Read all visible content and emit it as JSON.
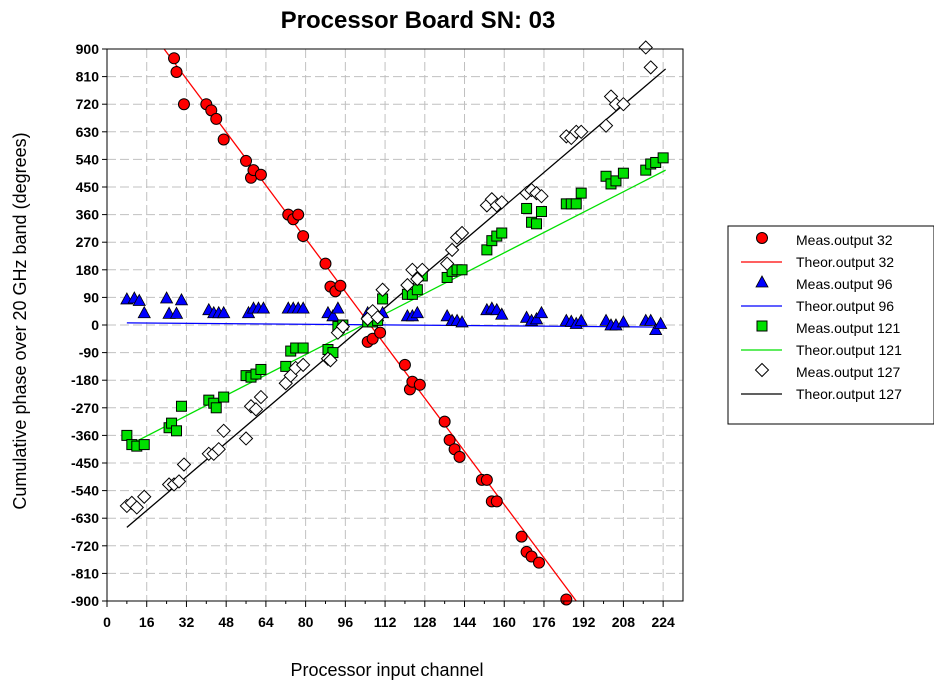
{
  "chart_data": {
    "type": "scatter",
    "title": "Processor Board SN: 03",
    "xlabel": "Processor input channel",
    "ylabel": "Cumulative phase over 20 GHz band (degrees)",
    "xlim": [
      0,
      232
    ],
    "ylim": [
      -900,
      900
    ],
    "xticks": [
      0,
      16,
      32,
      48,
      64,
      80,
      96,
      112,
      128,
      144,
      160,
      176,
      192,
      208,
      224
    ],
    "yticks": [
      900,
      810,
      720,
      630,
      540,
      450,
      360,
      270,
      180,
      90,
      0,
      -90,
      -180,
      -270,
      -360,
      -450,
      -540,
      -630,
      -720,
      -810,
      -900
    ],
    "grid": true,
    "legend_position": "right",
    "series": [
      {
        "name": "Meas.output 32",
        "kind": "scatter",
        "marker": "circle",
        "color": "#ff0000",
        "points": [
          [
            27,
            870
          ],
          [
            28,
            825
          ],
          [
            31,
            720
          ],
          [
            40,
            720
          ],
          [
            42,
            700
          ],
          [
            44,
            672
          ],
          [
            47,
            605
          ],
          [
            56,
            535
          ],
          [
            58,
            480
          ],
          [
            59,
            505
          ],
          [
            62,
            490
          ],
          [
            73,
            360
          ],
          [
            75,
            345
          ],
          [
            77,
            360
          ],
          [
            79,
            290
          ],
          [
            88,
            200
          ],
          [
            90,
            125
          ],
          [
            92,
            110
          ],
          [
            94,
            128
          ],
          [
            105,
            -55
          ],
          [
            107,
            -45
          ],
          [
            110,
            -25
          ],
          [
            120,
            -130
          ],
          [
            122,
            -210
          ],
          [
            123,
            -185
          ],
          [
            126,
            -195
          ],
          [
            136,
            -315
          ],
          [
            138,
            -375
          ],
          [
            140,
            -405
          ],
          [
            142,
            -430
          ],
          [
            151,
            -505
          ],
          [
            153,
            -505
          ],
          [
            155,
            -575
          ],
          [
            157,
            -575
          ],
          [
            167,
            -690
          ],
          [
            169,
            -740
          ],
          [
            171,
            -755
          ],
          [
            174,
            -775
          ],
          [
            185,
            -895
          ]
        ]
      },
      {
        "name": "Theor.output 32",
        "kind": "line",
        "color": "#ff0000",
        "points": [
          [
            23,
            900
          ],
          [
            189,
            -900
          ]
        ]
      },
      {
        "name": "Meas.output 96",
        "kind": "scatter",
        "marker": "triangle",
        "color": "#0000ff",
        "points": [
          [
            8,
            85
          ],
          [
            11,
            88
          ],
          [
            13,
            80
          ],
          [
            15,
            40
          ],
          [
            24,
            88
          ],
          [
            25,
            38
          ],
          [
            28,
            38
          ],
          [
            30,
            82
          ],
          [
            41,
            50
          ],
          [
            43,
            40
          ],
          [
            45,
            40
          ],
          [
            47,
            40
          ],
          [
            57,
            40
          ],
          [
            59,
            55
          ],
          [
            61,
            55
          ],
          [
            63,
            55
          ],
          [
            73,
            55
          ],
          [
            75,
            55
          ],
          [
            77,
            55
          ],
          [
            79,
            55
          ],
          [
            89,
            40
          ],
          [
            91,
            30
          ],
          [
            93,
            55
          ],
          [
            105,
            40
          ],
          [
            107,
            20
          ],
          [
            109,
            30
          ],
          [
            111,
            40
          ],
          [
            121,
            30
          ],
          [
            123,
            30
          ],
          [
            125,
            40
          ],
          [
            137,
            30
          ],
          [
            139,
            15
          ],
          [
            141,
            15
          ],
          [
            143,
            10
          ],
          [
            153,
            50
          ],
          [
            155,
            55
          ],
          [
            157,
            50
          ],
          [
            159,
            35
          ],
          [
            169,
            25
          ],
          [
            171,
            15
          ],
          [
            173,
            20
          ],
          [
            175,
            40
          ],
          [
            185,
            15
          ],
          [
            187,
            12
          ],
          [
            189,
            5
          ],
          [
            191,
            15
          ],
          [
            201,
            15
          ],
          [
            203,
            0
          ],
          [
            205,
            0
          ],
          [
            208,
            10
          ],
          [
            217,
            15
          ],
          [
            219,
            15
          ],
          [
            221,
            -15
          ],
          [
            223,
            5
          ]
        ]
      },
      {
        "name": "Theor.output 96",
        "kind": "line",
        "color": "#0000ff",
        "points": [
          [
            8,
            7
          ],
          [
            225,
            -7
          ]
        ]
      },
      {
        "name": "Meas.output 121",
        "kind": "scatter",
        "marker": "square",
        "color": "#00e000",
        "points": [
          [
            8,
            -360
          ],
          [
            10,
            -390
          ],
          [
            12,
            -395
          ],
          [
            15,
            -390
          ],
          [
            25,
            -335
          ],
          [
            26,
            -320
          ],
          [
            28,
            -345
          ],
          [
            30,
            -265
          ],
          [
            41,
            -245
          ],
          [
            43,
            -255
          ],
          [
            44,
            -270
          ],
          [
            47,
            -235
          ],
          [
            56,
            -165
          ],
          [
            58,
            -170
          ],
          [
            60,
            -160
          ],
          [
            62,
            -145
          ],
          [
            72,
            -135
          ],
          [
            74,
            -85
          ],
          [
            76,
            -75
          ],
          [
            79,
            -75
          ],
          [
            89,
            -80
          ],
          [
            91,
            -90
          ],
          [
            93,
            -5
          ],
          [
            95,
            0
          ],
          [
            105,
            10
          ],
          [
            107,
            10
          ],
          [
            109,
            15
          ],
          [
            111,
            85
          ],
          [
            121,
            100
          ],
          [
            123,
            100
          ],
          [
            125,
            115
          ],
          [
            127,
            160
          ],
          [
            137,
            155
          ],
          [
            139,
            175
          ],
          [
            141,
            180
          ],
          [
            143,
            180
          ],
          [
            153,
            245
          ],
          [
            155,
            275
          ],
          [
            157,
            290
          ],
          [
            159,
            300
          ],
          [
            169,
            380
          ],
          [
            171,
            335
          ],
          [
            173,
            330
          ],
          [
            175,
            370
          ],
          [
            185,
            395
          ],
          [
            187,
            395
          ],
          [
            189,
            395
          ],
          [
            191,
            430
          ],
          [
            201,
            485
          ],
          [
            203,
            460
          ],
          [
            205,
            470
          ],
          [
            208,
            495
          ],
          [
            217,
            505
          ],
          [
            219,
            525
          ],
          [
            221,
            530
          ],
          [
            224,
            545
          ]
        ]
      },
      {
        "name": "Theor.output 121",
        "kind": "line",
        "color": "#00e000",
        "points": [
          [
            8,
            -395
          ],
          [
            225,
            505
          ]
        ]
      },
      {
        "name": "Meas.output 127",
        "kind": "scatter",
        "marker": "diamond",
        "color": "#000000",
        "points": [
          [
            8,
            -590
          ],
          [
            10,
            -580
          ],
          [
            12,
            -595
          ],
          [
            15,
            -560
          ],
          [
            25,
            -520
          ],
          [
            27,
            -520
          ],
          [
            29,
            -510
          ],
          [
            31,
            -455
          ],
          [
            41,
            -420
          ],
          [
            43,
            -420
          ],
          [
            45,
            -405
          ],
          [
            47,
            -345
          ],
          [
            56,
            -370
          ],
          [
            58,
            -265
          ],
          [
            60,
            -275
          ],
          [
            62,
            -235
          ],
          [
            72,
            -190
          ],
          [
            74,
            -165
          ],
          [
            76,
            -140
          ],
          [
            79,
            -130
          ],
          [
            89,
            -110
          ],
          [
            90,
            -115
          ],
          [
            93,
            -25
          ],
          [
            95,
            -5
          ],
          [
            105,
            20
          ],
          [
            107,
            45
          ],
          [
            109,
            25
          ],
          [
            111,
            115
          ],
          [
            121,
            130
          ],
          [
            123,
            180
          ],
          [
            125,
            150
          ],
          [
            127,
            180
          ],
          [
            137,
            200
          ],
          [
            139,
            245
          ],
          [
            141,
            285
          ],
          [
            143,
            300
          ],
          [
            153,
            390
          ],
          [
            155,
            410
          ],
          [
            157,
            390
          ],
          [
            159,
            400
          ],
          [
            169,
            430
          ],
          [
            171,
            440
          ],
          [
            173,
            430
          ],
          [
            175,
            420
          ],
          [
            185,
            615
          ],
          [
            187,
            610
          ],
          [
            189,
            630
          ],
          [
            191,
            630
          ],
          [
            201,
            650
          ],
          [
            203,
            745
          ],
          [
            205,
            720
          ],
          [
            208,
            720
          ],
          [
            217,
            905
          ],
          [
            219,
            840
          ]
        ]
      },
      {
        "name": "Theor.output 127",
        "kind": "line",
        "color": "#000000",
        "points": [
          [
            8,
            -660
          ],
          [
            225,
            835
          ]
        ]
      }
    ]
  }
}
